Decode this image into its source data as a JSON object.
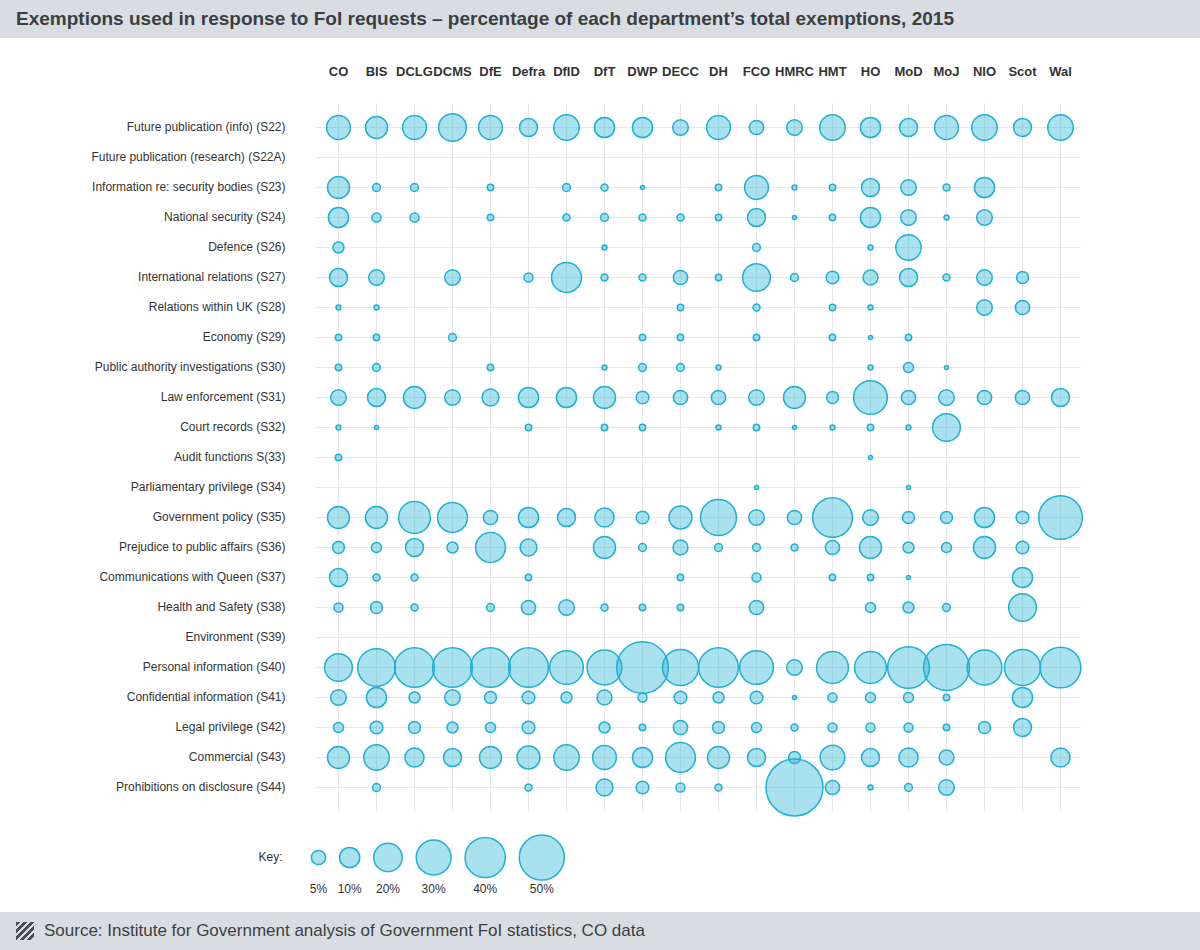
{
  "chart_data": {
    "type": "bubble_matrix",
    "title": "Exemptions used in response to FoI requests – percentage of each department’s total exemptions, 2015",
    "x_categories": [
      "CO",
      "BIS",
      "DCLG",
      "DCMS",
      "DfE",
      "Defra",
      "DfID",
      "DfT",
      "DWP",
      "DECC",
      "DH",
      "FCO",
      "HMRC",
      "HMT",
      "HO",
      "MoD",
      "MoJ",
      "NIO",
      "Scot",
      "Wal"
    ],
    "y_categories": [
      "Future publication (info) (S22)",
      "Future publication (research) (S22A)",
      "Information re: security bodies (S23)",
      "National security (S24)",
      "Defence (S26)",
      "International relations (S27)",
      "Relations within UK (S28)",
      "Economy (S29)",
      "Public authority investigations (S30)",
      "Law enforcement (S31)",
      "Court records (S32)",
      "Audit functions S(33)",
      "Parliamentary privilege (S34)",
      "Government policy (S35)",
      "Prejudice to public affairs (S36)",
      "Communications with Queen (S37)",
      "Health and Safety (S38)",
      "Environment (S39)",
      "Personal information (S40)",
      "Confidential information (S41)",
      "Legal privilege (S42)",
      "Commercial (S43)",
      "Prohibitions on disclosure (S44)"
    ],
    "values": [
      [
        14,
        12,
        14,
        19,
        14,
        8,
        16,
        10,
        10,
        6,
        14,
        5,
        6,
        16,
        10,
        8,
        14,
        16,
        8,
        16
      ],
      [
        null,
        null,
        null,
        null,
        null,
        null,
        null,
        null,
        null,
        null,
        null,
        null,
        null,
        null,
        null,
        null,
        null,
        null,
        null,
        null
      ],
      [
        12,
        1.5,
        1.5,
        null,
        1,
        null,
        1.5,
        1.2,
        0.4,
        null,
        1,
        14,
        0.6,
        1,
        8,
        6,
        1.2,
        10,
        null,
        null
      ],
      [
        10,
        2,
        2,
        null,
        1,
        null,
        1.2,
        1.5,
        1.2,
        1.2,
        1,
        8,
        0.4,
        1,
        10,
        6,
        0.6,
        6,
        null,
        null
      ],
      [
        3,
        null,
        null,
        null,
        null,
        null,
        null,
        0.6,
        null,
        null,
        null,
        1.5,
        null,
        null,
        0.6,
        16,
        null,
        null,
        null,
        null
      ],
      [
        8,
        6,
        null,
        6,
        null,
        2,
        22,
        1.2,
        1.2,
        5,
        1,
        19,
        1.5,
        4,
        5.5,
        8,
        1.2,
        6,
        3.5,
        null
      ],
      [
        0.6,
        0.6,
        null,
        null,
        null,
        null,
        null,
        null,
        null,
        1,
        null,
        1.2,
        null,
        1,
        0.6,
        null,
        null,
        6,
        5,
        null
      ],
      [
        1,
        1,
        null,
        1.5,
        null,
        null,
        null,
        null,
        1,
        1,
        null,
        1,
        null,
        1,
        0.4,
        1,
        null,
        null,
        null,
        null
      ],
      [
        1,
        1.5,
        null,
        null,
        1,
        null,
        null,
        0.6,
        1.5,
        1.5,
        0.6,
        null,
        null,
        null,
        0.6,
        2.5,
        0.4,
        null,
        null,
        null
      ],
      [
        6,
        8,
        12,
        6,
        7,
        10,
        10,
        12,
        4,
        5,
        5,
        6,
        12,
        3.5,
        28,
        5,
        6,
        5,
        5,
        8
      ],
      [
        0.6,
        0.4,
        null,
        null,
        null,
        1,
        null,
        1,
        1,
        null,
        0.6,
        1,
        0.4,
        0.6,
        1,
        0.6,
        19,
        null,
        null,
        null
      ],
      [
        1,
        null,
        null,
        null,
        null,
        null,
        null,
        null,
        null,
        null,
        null,
        null,
        null,
        null,
        0.4,
        null,
        null,
        null,
        null,
        null
      ],
      [
        null,
        null,
        null,
        null,
        null,
        null,
        null,
        null,
        null,
        null,
        null,
        0.4,
        null,
        null,
        null,
        0.4,
        null,
        null,
        null,
        null
      ],
      [
        12,
        12,
        25,
        22,
        5,
        10,
        8,
        9,
        4,
        13,
        32,
        6,
        5,
        39,
        6,
        3.5,
        3.5,
        10,
        4,
        47
      ],
      [
        3.5,
        2.5,
        8,
        3,
        22,
        7,
        null,
        12,
        1.5,
        5.5,
        1.5,
        1.5,
        1.2,
        5,
        12,
        3,
        2.5,
        12,
        4,
        null
      ],
      [
        8,
        1.2,
        1.2,
        null,
        null,
        1,
        null,
        null,
        null,
        1,
        null,
        2,
        null,
        1,
        1,
        0.4,
        null,
        null,
        10,
        null
      ],
      [
        2,
        3.5,
        1.2,
        null,
        1.5,
        5,
        6,
        1.2,
        1,
        1,
        null,
        5,
        null,
        null,
        2.5,
        3,
        1.5,
        null,
        19,
        null
      ],
      [
        null,
        null,
        null,
        null,
        null,
        null,
        null,
        null,
        null,
        null,
        null,
        null,
        null,
        null,
        null,
        null,
        null,
        null,
        null,
        null
      ],
      [
        19,
        35,
        39,
        39,
        39,
        39,
        28,
        30,
        66,
        32,
        39,
        28,
        6,
        25,
        25,
        43,
        52,
        30,
        32,
        41
      ],
      [
        6,
        10,
        3,
        6,
        3.5,
        4,
        3,
        5.5,
        2,
        4,
        3,
        4,
        0.4,
        2,
        2.5,
        2.5,
        1,
        null,
        10,
        null
      ],
      [
        2.5,
        4,
        3.5,
        3,
        2.5,
        4,
        null,
        3,
        1,
        5,
        3.5,
        2.5,
        1.2,
        2,
        2,
        2,
        1,
        3.5,
        8,
        null
      ],
      [
        12,
        16,
        9,
        8,
        12,
        13,
        16,
        14,
        10,
        22,
        12,
        8,
        3.5,
        15,
        8,
        9,
        5.5,
        null,
        null,
        9
      ],
      [
        null,
        1.5,
        null,
        null,
        null,
        1.2,
        null,
        7,
        4,
        2,
        1.2,
        null,
        80,
        5,
        0.6,
        1.5,
        6,
        null,
        null,
        null
      ]
    ],
    "size_key": {
      "label": "Key:",
      "values": [
        {
          "value": 5,
          "label": "5%"
        },
        {
          "value": 10,
          "label": "10%"
        },
        {
          "value": 20,
          "label": "20%"
        },
        {
          "value": 30,
          "label": "30%"
        },
        {
          "value": 40,
          "label": "40%"
        },
        {
          "value": 50,
          "label": "50%"
        }
      ]
    },
    "source": "Source: Institute for Government analysis of Government FoI statistics, CO data",
    "color": "#1fb0d3",
    "grid": true
  }
}
